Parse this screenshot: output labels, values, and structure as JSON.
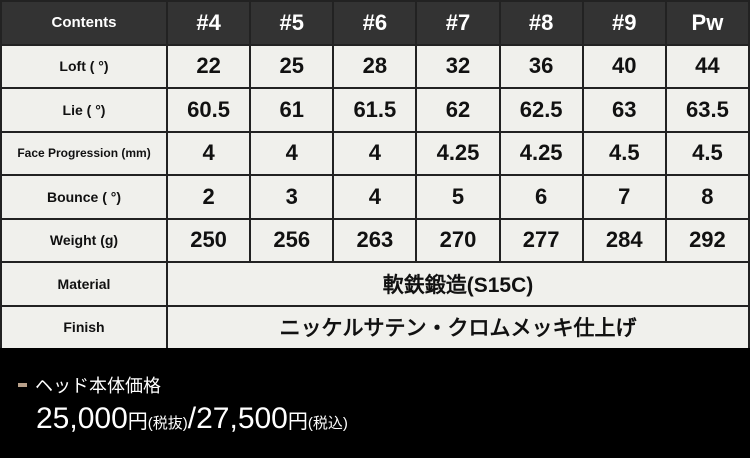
{
  "table": {
    "header": [
      "Contents",
      "#4",
      "#5",
      "#6",
      "#7",
      "#8",
      "#9",
      "Pw"
    ],
    "rows": [
      {
        "label": "Loft ( °)",
        "values": [
          "22",
          "25",
          "28",
          "32",
          "36",
          "40",
          "44"
        ]
      },
      {
        "label": "Lie ( °)",
        "values": [
          "60.5",
          "61",
          "61.5",
          "62",
          "62.5",
          "63",
          "63.5"
        ]
      },
      {
        "label": "Face Progression (mm)",
        "values": [
          "4",
          "4",
          "4",
          "4.25",
          "4.25",
          "4.5",
          "4.5"
        ]
      },
      {
        "label": "Bounce ( °)",
        "values": [
          "2",
          "3",
          "4",
          "5",
          "6",
          "7",
          "8"
        ]
      },
      {
        "label": "Weight (g)",
        "values": [
          "250",
          "256",
          "263",
          "270",
          "277",
          "284",
          "292"
        ]
      }
    ],
    "material": {
      "label": "Material",
      "value": "軟鉄鍛造(S15C)"
    },
    "finish": {
      "label": "Finish",
      "value": "ニッケルサテン・クロムメッキ仕上げ"
    }
  },
  "price": {
    "title": "ヘッド本体価格",
    "excl_amount": "25,000",
    "yen": "円",
    "excl_note": "(税抜)",
    "separator": "/",
    "incl_amount": "27,500",
    "incl_note": "(税込)"
  },
  "colors": {
    "header_bg": "#333333",
    "cell_bg": "#f0f0ec",
    "accent_dash": "#b8a08a"
  }
}
